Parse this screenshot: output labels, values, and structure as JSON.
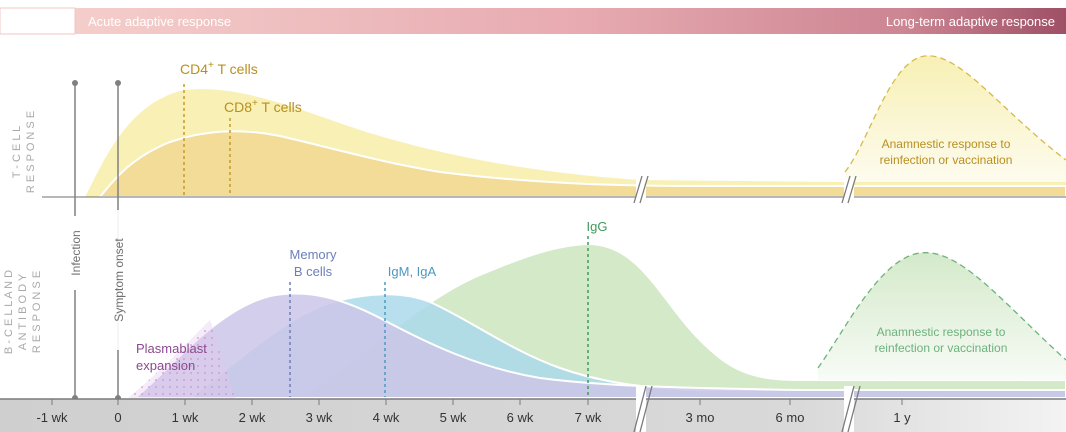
{
  "header": {
    "acute_label": "Acute adaptive response",
    "longterm_label": "Long-term adaptive response"
  },
  "panels": {
    "tcell_title_line1": "T - C E L L",
    "tcell_title_line2": "R E S P O N S E",
    "bcell_title_line1": "B - C E L L  A N D",
    "bcell_title_line2": "A N T I B O D Y",
    "bcell_title_line3": "R E S P O N S E"
  },
  "events": {
    "infection": "Infection",
    "symptom_onset": "Symptom onset"
  },
  "curve_labels": {
    "cd4": "CD4",
    "cd4_sup": "+",
    "cd4_rest": " T cells",
    "cd8": "CD8",
    "cd8_sup": "+",
    "cd8_rest": " T cells",
    "tcell_anamnestic_line1": "Anamnestic response to",
    "tcell_anamnestic_line2": "reinfection or vaccination",
    "memory_line1": "Memory",
    "memory_line2": "B cells",
    "igm": "IgM, IgA",
    "igg": "IgG",
    "plasmablast_line1": "Plasmablast",
    "plasmablast_line2": "expansion",
    "bcell_anamnestic_line1": "Anamnestic response to",
    "bcell_anamnestic_line2": "reinfection or vaccination"
  },
  "axis": {
    "ticks": [
      "-1 wk",
      "0",
      "1 wk",
      "2 wk",
      "3 wk",
      "4 wk",
      "5 wk",
      "6 wk",
      "7 wk",
      "3 mo",
      "6 mo",
      "1 y"
    ]
  },
  "colors": {
    "header_gradient_start": "#f3c9c6",
    "header_gradient_end": "#a8586a",
    "cd4": "#f7efb0",
    "cd8": "#f1d98e",
    "tcell_text": "#b98f1f",
    "memory": "#c9c3e6",
    "igm": "#a9d6ea",
    "igg": "#cfe7c4",
    "memory_text": "#6c7fb8",
    "igm_text": "#4d98c2",
    "igg_text": "#3f9a5d",
    "plasmablast_text": "#8a4a90",
    "axis_band": "#d9d9d9",
    "event_line": "#7f7f7f"
  }
}
